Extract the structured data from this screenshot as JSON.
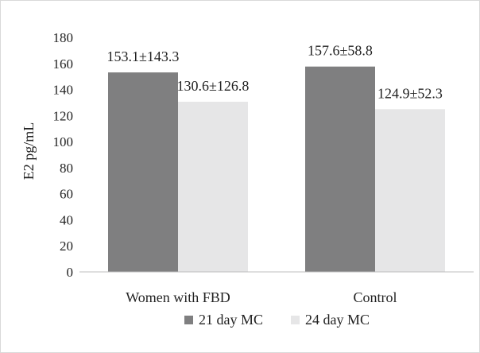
{
  "chart_data": {
    "type": "bar",
    "title": "",
    "xlabel": "",
    "ylabel": "E2 pg/mL",
    "ylim": [
      0,
      180
    ],
    "yticks": [
      0,
      20,
      40,
      60,
      80,
      100,
      120,
      140,
      160,
      180
    ],
    "grid": false,
    "legend_position": "bottom",
    "categories": [
      "Women with FBD",
      "Control"
    ],
    "series": [
      {
        "name": "21 day MC",
        "color": "#7f7f80",
        "values": [
          153.1,
          157.6
        ],
        "labels": [
          "153.1±143.3",
          "157.6±58.8"
        ]
      },
      {
        "name": "24 day MC",
        "color": "#e6e6e7",
        "values": [
          130.6,
          124.9
        ],
        "labels": [
          "130.6±126.8",
          "124.9±52.3"
        ]
      }
    ]
  }
}
